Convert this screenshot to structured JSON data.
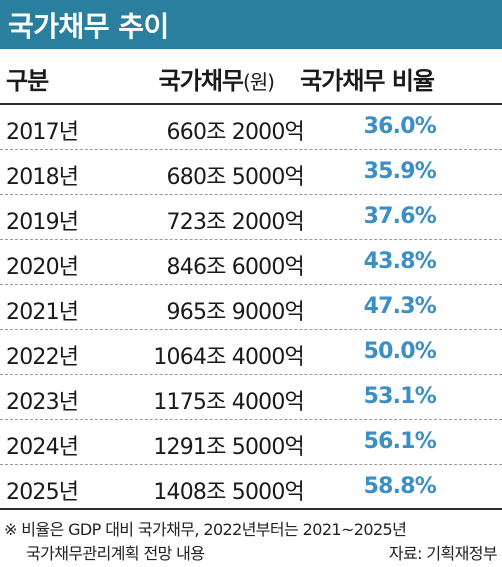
{
  "title": "국가채무 추이",
  "headers": {
    "category": "구분",
    "debt": "국가채무",
    "debt_unit": "(원)",
    "ratio": "국가채무 비율"
  },
  "rows": [
    {
      "year": "2017년",
      "debt": "660조 2000억",
      "ratio": "36.0%"
    },
    {
      "year": "2018년",
      "debt": "680조 5000억",
      "ratio": "35.9%"
    },
    {
      "year": "2019년",
      "debt": "723조 2000억",
      "ratio": "37.6%"
    },
    {
      "year": "2020년",
      "debt": "846조 6000억",
      "ratio": "43.8%"
    },
    {
      "year": "2021년",
      "debt": "965조 9000억",
      "ratio": "47.3%"
    },
    {
      "year": "2022년",
      "debt": "1064조 4000억",
      "ratio": "50.0%"
    },
    {
      "year": "2023년",
      "debt": "1175조 4000억",
      "ratio": "53.1%"
    },
    {
      "year": "2024년",
      "debt": "1291조 5000억",
      "ratio": "56.1%"
    },
    {
      "year": "2025년",
      "debt": "1408조 5000억",
      "ratio": "58.8%"
    }
  ],
  "footnote": {
    "line1": "※ 비율은 GDP 대비 국가채무, 2022년부터는 2021~2025년",
    "line2": "국가채무관리계획 전망 내용",
    "source": "자료: 기획재정부"
  },
  "colors": {
    "title_bar": "#2a7f9e",
    "ratio_text": "#3b8fc4"
  }
}
